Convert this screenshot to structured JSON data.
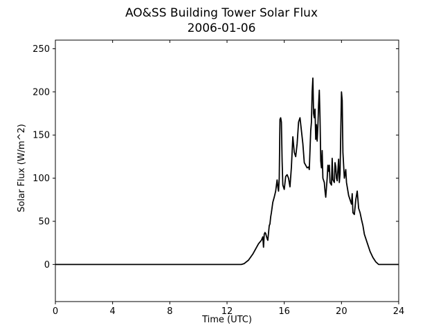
{
  "chart_data": {
    "type": "line",
    "title": "AO&SS Building Tower Solar Flux",
    "subtitle": "2006-01-06",
    "xlabel": "Time (UTC)",
    "ylabel": "Solar Flux (W/m^2)",
    "xlim": [
      0,
      24
    ],
    "ylim": [
      -43,
      260
    ],
    "xticks": [
      0,
      4,
      8,
      12,
      16,
      20,
      24
    ],
    "yticks": [
      0,
      50,
      100,
      150,
      200,
      250
    ],
    "grid": false,
    "line_color": "#000000",
    "series": [
      {
        "x": [
          0,
          13.0,
          13.2,
          13.5,
          13.8,
          14.0,
          14.2,
          14.4,
          14.5,
          14.55,
          14.6,
          14.65,
          14.7,
          14.8,
          14.85,
          14.95,
          15.0,
          15.05,
          15.1,
          15.2,
          15.3,
          15.4,
          15.5,
          15.55,
          15.6,
          15.65,
          15.7,
          15.75,
          15.8,
          15.85,
          15.9,
          16.0,
          16.1,
          16.2,
          16.3,
          16.4,
          16.5,
          16.6,
          16.7,
          16.8,
          16.9,
          17.0,
          17.1,
          17.2,
          17.3,
          17.4,
          17.5,
          17.6,
          17.7,
          17.75,
          17.85,
          17.9,
          17.95,
          18.0,
          18.05,
          18.1,
          18.15,
          18.2,
          18.25,
          18.3,
          18.35,
          18.4,
          18.45,
          18.5,
          18.55,
          18.6,
          18.65,
          18.7,
          18.8,
          18.85,
          18.9,
          19.0,
          19.05,
          19.1,
          19.15,
          19.2,
          19.3,
          19.35,
          19.4,
          19.5,
          19.55,
          19.6,
          19.65,
          19.7,
          19.8,
          19.85,
          19.9,
          20.0,
          20.05,
          20.1,
          20.2,
          20.3,
          20.35,
          20.4,
          20.5,
          20.6,
          20.7,
          20.75,
          20.8,
          20.9,
          21.0,
          21.05,
          21.1,
          21.2,
          21.3,
          21.4,
          21.5,
          21.6,
          21.8,
          22.0,
          22.2,
          22.4,
          22.6,
          22.8,
          23.0,
          24.0
        ],
        "y": [
          0,
          0,
          1,
          5,
          12,
          18,
          24,
          28,
          32,
          20,
          35,
          37,
          36,
          30,
          28,
          45,
          47,
          55,
          60,
          72,
          78,
          85,
          98,
          90,
          85,
          100,
          168,
          170,
          165,
          120,
          92,
          87,
          102,
          104,
          100,
          90,
          113,
          148,
          130,
          125,
          140,
          165,
          170,
          155,
          140,
          118,
          115,
          112,
          113,
          110,
          155,
          165,
          200,
          216,
          175,
          170,
          180,
          145,
          162,
          143,
          160,
          185,
          202,
          170,
          120,
          112,
          132,
          100,
          95,
          85,
          78,
          100,
          115,
          108,
          115,
          95,
          92,
          123,
          98,
          95,
          118,
          113,
          100,
          97,
          122,
          95,
          105,
          200,
          190,
          130,
          100,
          110,
          95,
          90,
          80,
          75,
          70,
          82,
          60,
          58,
          75,
          80,
          85,
          65,
          60,
          52,
          45,
          35,
          25,
          15,
          8,
          3,
          0,
          0,
          0,
          0
        ]
      }
    ]
  }
}
